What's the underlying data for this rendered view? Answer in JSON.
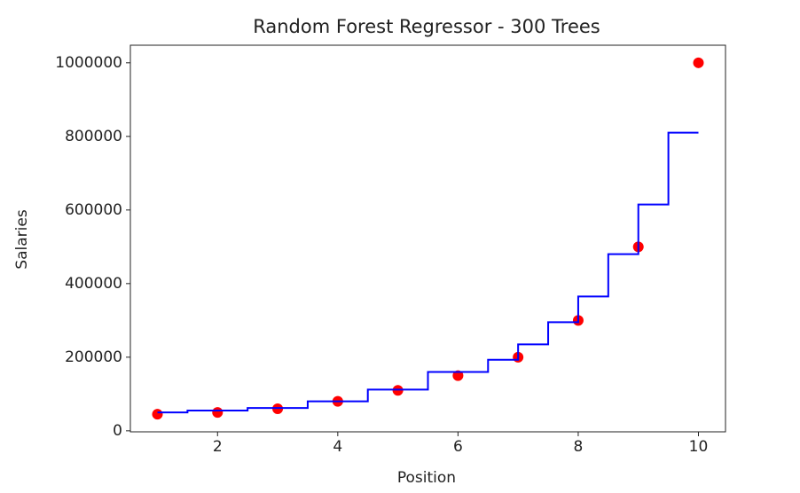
{
  "chart_data": {
    "type": "scatter",
    "title": "Random Forest Regressor - 300 Trees",
    "x_label": "Position",
    "y_label": "Salaries",
    "xlim": [
      0.55,
      10.45
    ],
    "ylim": [
      -2750,
      1047750
    ],
    "xticks": [
      2,
      4,
      6,
      8,
      10
    ],
    "yticks": [
      0,
      200000,
      400000,
      600000,
      800000,
      1000000
    ],
    "grid": false,
    "series": [
      {
        "type": "scatter",
        "color": "#ff0000",
        "x": [
          1,
          2,
          3,
          4,
          5,
          6,
          7,
          8,
          9,
          10
        ],
        "values": [
          45000,
          50000,
          60000,
          80000,
          110000,
          150000,
          200000,
          300000,
          500000,
          1000000
        ]
      },
      {
        "type": "line",
        "color": "#0000ff",
        "x": [
          1,
          1.5,
          1.5,
          2.5,
          2.5,
          3.5,
          3.5,
          4.5,
          4.5,
          5.5,
          5.5,
          6.5,
          6.5,
          7,
          7,
          7.5,
          7.5,
          8,
          8,
          8.5,
          8.5,
          9,
          9,
          9.5,
          9.5,
          10
        ],
        "values": [
          50000,
          50000,
          55000,
          55000,
          62000,
          62000,
          80000,
          80000,
          112000,
          112000,
          160000,
          160000,
          193000,
          193000,
          235000,
          235000,
          295000,
          295000,
          365000,
          365000,
          480000,
          480000,
          615000,
          615000,
          810000,
          810000
        ]
      }
    ]
  }
}
